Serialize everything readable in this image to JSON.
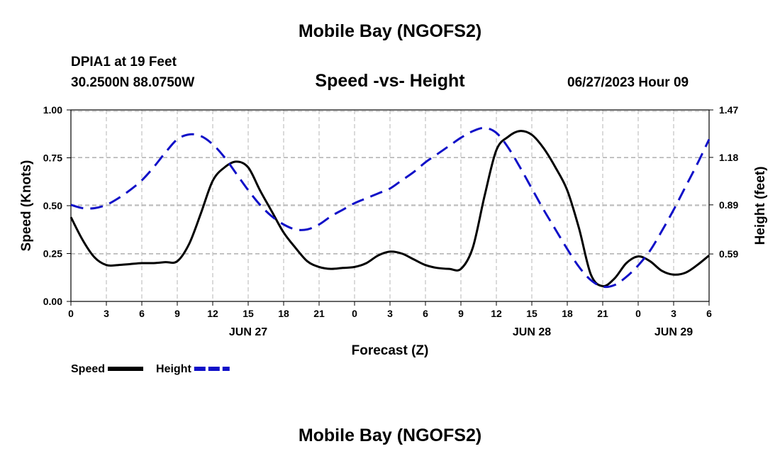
{
  "header": {
    "title": "Mobile Bay (NGOFS2)",
    "station": "DPIA1 at 19 Feet",
    "coords": "30.2500N  88.0750W",
    "subtitle": "Speed -vs- Height",
    "datetime": "06/27/2023 Hour 09",
    "footer_title": "Mobile Bay (NGOFS2)"
  },
  "chart_data": {
    "type": "line",
    "title": "Speed -vs- Height",
    "xlabel": "Forecast (Z)",
    "ylabel": "Speed (Knots)",
    "y2label": "Height (feet)",
    "x_tick_labels": [
      "0",
      "3",
      "6",
      "9",
      "12",
      "15",
      "18",
      "21",
      "0",
      "3",
      "6",
      "9",
      "12",
      "15",
      "18",
      "21",
      "0",
      "3",
      "6"
    ],
    "date_labels": [
      {
        "label": "JUN 27",
        "x": 15
      },
      {
        "label": "JUN 28",
        "x": 39
      },
      {
        "label": "JUN 29",
        "x": 51
      }
    ],
    "xlim": [
      0,
      54
    ],
    "ylim": [
      0,
      1.0
    ],
    "y_ticks": [
      "0.00",
      "0.25",
      "0.50",
      "0.75",
      "1.00"
    ],
    "y2lim": [
      0.3,
      1.47
    ],
    "y2_ticks": [
      "0.59",
      "0.89",
      "1.18",
      "1.47"
    ],
    "grid": true,
    "series": [
      {
        "name": "Speed",
        "axis": "left",
        "color": "#000000",
        "style": "solid",
        "x": [
          0,
          1,
          2,
          3,
          4,
          5,
          6,
          7,
          8,
          9,
          10,
          11,
          12,
          13,
          14,
          15,
          16,
          17,
          18,
          19,
          20,
          21,
          22,
          23,
          24,
          25,
          26,
          27,
          28,
          29,
          30,
          31,
          32,
          33,
          34,
          35,
          36,
          37,
          38,
          39,
          40,
          41,
          42,
          43,
          44,
          45,
          46,
          47,
          48,
          49,
          50,
          51,
          52,
          53,
          54
        ],
        "values": [
          0.44,
          0.32,
          0.23,
          0.19,
          0.19,
          0.195,
          0.2,
          0.2,
          0.205,
          0.21,
          0.3,
          0.46,
          0.63,
          0.7,
          0.73,
          0.7,
          0.58,
          0.47,
          0.36,
          0.28,
          0.21,
          0.18,
          0.17,
          0.175,
          0.18,
          0.2,
          0.24,
          0.26,
          0.25,
          0.22,
          0.19,
          0.175,
          0.17,
          0.17,
          0.28,
          0.55,
          0.79,
          0.86,
          0.89,
          0.87,
          0.8,
          0.7,
          0.58,
          0.38,
          0.14,
          0.08,
          0.12,
          0.2,
          0.235,
          0.21,
          0.16,
          0.14,
          0.15,
          0.19,
          0.24
        ]
      },
      {
        "name": "Height",
        "axis": "right",
        "color": "#1010c8",
        "style": "dashed",
        "x": [
          0,
          1,
          2,
          3,
          4,
          5,
          6,
          7,
          8,
          9,
          10,
          11,
          12,
          13,
          14,
          15,
          16,
          17,
          18,
          19,
          20,
          21,
          22,
          23,
          24,
          25,
          26,
          27,
          28,
          29,
          30,
          31,
          32,
          33,
          34,
          35,
          36,
          37,
          38,
          39,
          40,
          41,
          42,
          43,
          44,
          45,
          46,
          47,
          48,
          49,
          50,
          51,
          52,
          53,
          54
        ],
        "values": [
          0.89,
          0.87,
          0.87,
          0.89,
          0.93,
          0.98,
          1.04,
          1.12,
          1.21,
          1.29,
          1.32,
          1.31,
          1.26,
          1.18,
          1.08,
          0.98,
          0.89,
          0.82,
          0.77,
          0.74,
          0.74,
          0.77,
          0.82,
          0.86,
          0.9,
          0.93,
          0.96,
          0.99,
          1.04,
          1.09,
          1.15,
          1.2,
          1.25,
          1.3,
          1.34,
          1.36,
          1.33,
          1.24,
          1.12,
          0.99,
          0.86,
          0.74,
          0.62,
          0.51,
          0.43,
          0.39,
          0.4,
          0.45,
          0.52,
          0.61,
          0.73,
          0.86,
          1.0,
          1.14,
          1.29
        ]
      }
    ],
    "legend": {
      "placement": "bottom-left",
      "items": [
        {
          "label": "Speed",
          "color": "#000000",
          "style": "solid"
        },
        {
          "label": "Height",
          "color": "#1010c8",
          "style": "dashed"
        }
      ]
    }
  }
}
